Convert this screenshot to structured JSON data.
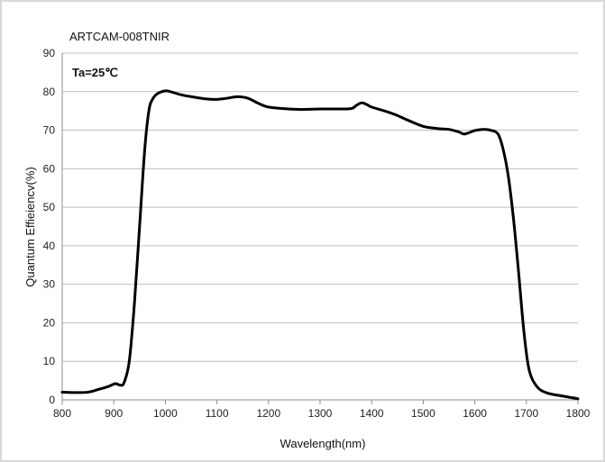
{
  "chart_data": {
    "type": "line",
    "title": "ARTCAM-008TNIR",
    "annotation": "Ta=25℃",
    "xlabel": "Wavelength(nm)",
    "ylabel": "Quantum   Effieiencv(%)",
    "xlim": [
      800,
      1800
    ],
    "ylim": [
      0,
      90
    ],
    "x_ticks": [
      "800",
      "900",
      "1000",
      "1100",
      "1200",
      "1300",
      "1400",
      "1500",
      "1600",
      "1700",
      "1800"
    ],
    "y_ticks": [
      "0",
      "10",
      "20",
      "30",
      "40",
      "50",
      "60",
      "70",
      "80",
      "90"
    ],
    "grid": "horizontal",
    "legend": "none",
    "line_color": "#000000",
    "series": [
      {
        "x": [
          800,
          820,
          850,
          870,
          890,
          903,
          913,
          920,
          930,
          940,
          950,
          960,
          968,
          975,
          985,
          1000,
          1010,
          1030,
          1050,
          1080,
          1100,
          1120,
          1140,
          1160,
          1180,
          1200,
          1230,
          1260,
          1300,
          1330,
          1360,
          1370,
          1380,
          1390,
          1400,
          1430,
          1450,
          1470,
          1500,
          1530,
          1550,
          1570,
          1580,
          1600,
          1615,
          1630,
          1645,
          1655,
          1665,
          1675,
          1685,
          1695,
          1705,
          1720,
          1740,
          1770,
          1800
        ],
        "y": [
          2.0,
          1.9,
          2.0,
          2.7,
          3.5,
          4.2,
          3.8,
          4.5,
          10,
          25,
          45,
          65,
          75,
          78,
          79.5,
          80.2,
          80.0,
          79.2,
          78.7,
          78.1,
          78.0,
          78.3,
          78.7,
          78.3,
          77.0,
          76.0,
          75.6,
          75.4,
          75.5,
          75.5,
          75.6,
          76.4,
          77.1,
          76.7,
          76.0,
          74.8,
          73.8,
          72.6,
          71.0,
          70.4,
          70.2,
          69.5,
          69.0,
          69.9,
          70.2,
          70.0,
          69.0,
          65.0,
          58.0,
          47.0,
          33.0,
          18.0,
          8.0,
          3.5,
          1.8,
          1.0,
          0.3
        ]
      }
    ]
  }
}
